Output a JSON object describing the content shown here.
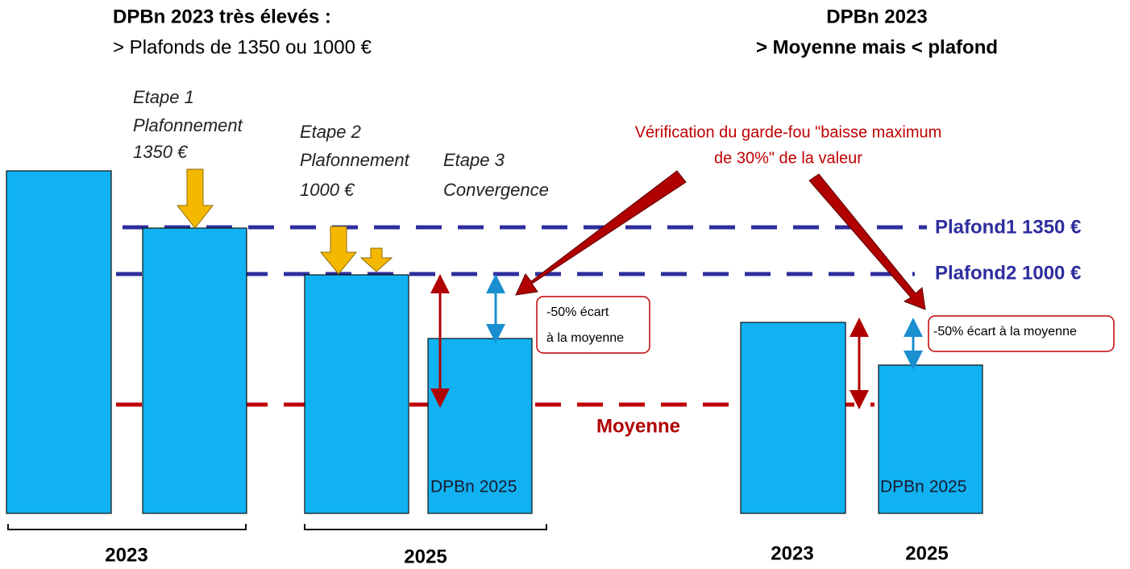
{
  "left_header": {
    "title": "DPBn 2023 très élevés :",
    "subtitle": "> Plafonds de 1350 ou 1000 €"
  },
  "right_header": {
    "title": "DPBn 2023",
    "subtitle": "> Moyenne mais < plafond"
  },
  "steps": [
    {
      "lines": [
        "Etape 1",
        "Plafonnement",
        "1350 €"
      ]
    },
    {
      "lines": [
        "Etape 2",
        "Plafonnement",
        "1000 €"
      ]
    },
    {
      "lines": [
        "Etape 3",
        "Convergence"
      ]
    }
  ],
  "annotation": {
    "lines": [
      "Vérification du garde-fou \"baisse maximum",
      "de 30%\" de la valeur"
    ]
  },
  "levels": {
    "plafond1": "Plafond1 1350 €",
    "plafond2": "Plafond2 1000 €",
    "moyenne": "Moyenne"
  },
  "notes": [
    {
      "lines": [
        "-50% écart",
        "à la moyenne"
      ]
    },
    {
      "lines": [
        "-50% écart à la moyenne"
      ]
    }
  ],
  "bar_labels": [
    "DPBn 2025",
    "DPBn 2025"
  ],
  "years": [
    "2023",
    "2025",
    "2023",
    "2025"
  ]
}
